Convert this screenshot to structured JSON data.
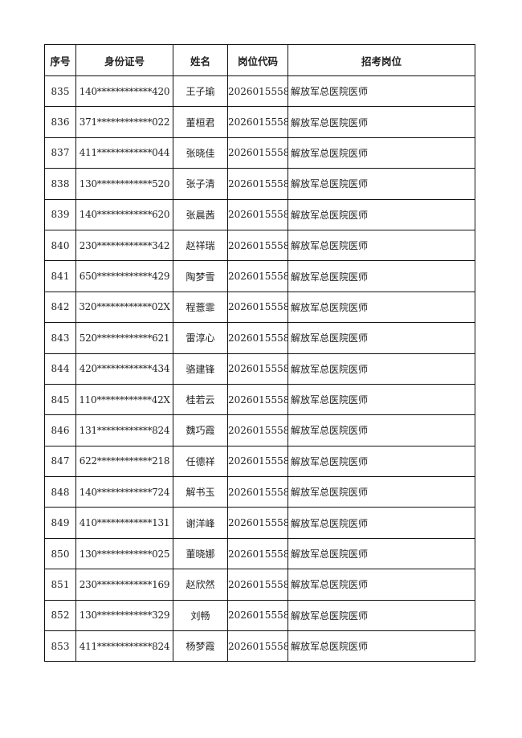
{
  "headers": [
    "序号",
    "身份证号",
    "姓名",
    "岗位代码",
    "招考岗位"
  ],
  "rows": [
    [
      "835",
      "140************420",
      "王子瑜",
      "2026015558",
      "解放军总医院医师"
    ],
    [
      "836",
      "371************022",
      "董桓君",
      "2026015558",
      "解放军总医院医师"
    ],
    [
      "837",
      "411************044",
      "张晓佳",
      "2026015558",
      "解放军总医院医师"
    ],
    [
      "838",
      "130************520",
      "张子清",
      "2026015558",
      "解放军总医院医师"
    ],
    [
      "839",
      "140************620",
      "张晨茜",
      "2026015558",
      "解放军总医院医师"
    ],
    [
      "840",
      "230************342",
      "赵祥瑞",
      "2026015558",
      "解放军总医院医师"
    ],
    [
      "841",
      "650************429",
      "陶梦雪",
      "2026015558",
      "解放军总医院医师"
    ],
    [
      "842",
      "320************02X",
      "程薏霏",
      "2026015558",
      "解放军总医院医师"
    ],
    [
      "843",
      "520************621",
      "雷淳心",
      "2026015558",
      "解放军总医院医师"
    ],
    [
      "844",
      "420************434",
      "骆建锋",
      "2026015558",
      "解放军总医院医师"
    ],
    [
      "845",
      "110************42X",
      "桂若云",
      "2026015558",
      "解放军总医院医师"
    ],
    [
      "846",
      "131************824",
      "魏巧霞",
      "2026015558",
      "解放军总医院医师"
    ],
    [
      "847",
      "622************218",
      "任德祥",
      "2026015558",
      "解放军总医院医师"
    ],
    [
      "848",
      "140************724",
      "解书玉",
      "2026015558",
      "解放军总医院医师"
    ],
    [
      "849",
      "410************131",
      "谢洋峰",
      "2026015558",
      "解放军总医院医师"
    ],
    [
      "850",
      "130************025",
      "董晓娜",
      "2026015558",
      "解放军总医院医师"
    ],
    [
      "851",
      "230************169",
      "赵欣然",
      "2026015558",
      "解放军总医院医师"
    ],
    [
      "852",
      "130************329",
      "刘畅",
      "2026015558",
      "解放军总医院医师"
    ],
    [
      "853",
      "411************824",
      "杨梦霞",
      "2026015558",
      "解放军总医院医师"
    ]
  ]
}
